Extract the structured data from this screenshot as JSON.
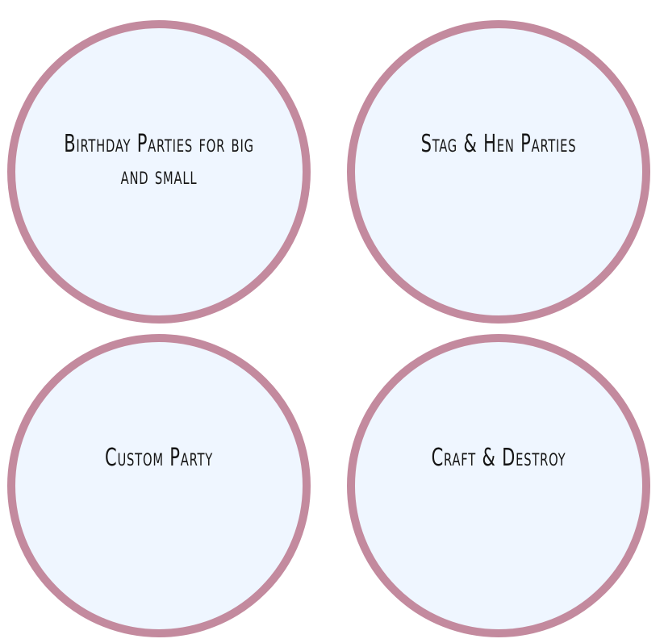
{
  "cards": [
    {
      "label": "Birthday Parties for big and small"
    },
    {
      "label": "Stag & Hen Parties"
    },
    {
      "label": "Custom Party"
    },
    {
      "label": "Craft & Destroy"
    }
  ],
  "colors": {
    "circle_border": "#c38a9e",
    "circle_fill": "#eff6ff",
    "text": "#161616",
    "background": "#ffffff"
  }
}
